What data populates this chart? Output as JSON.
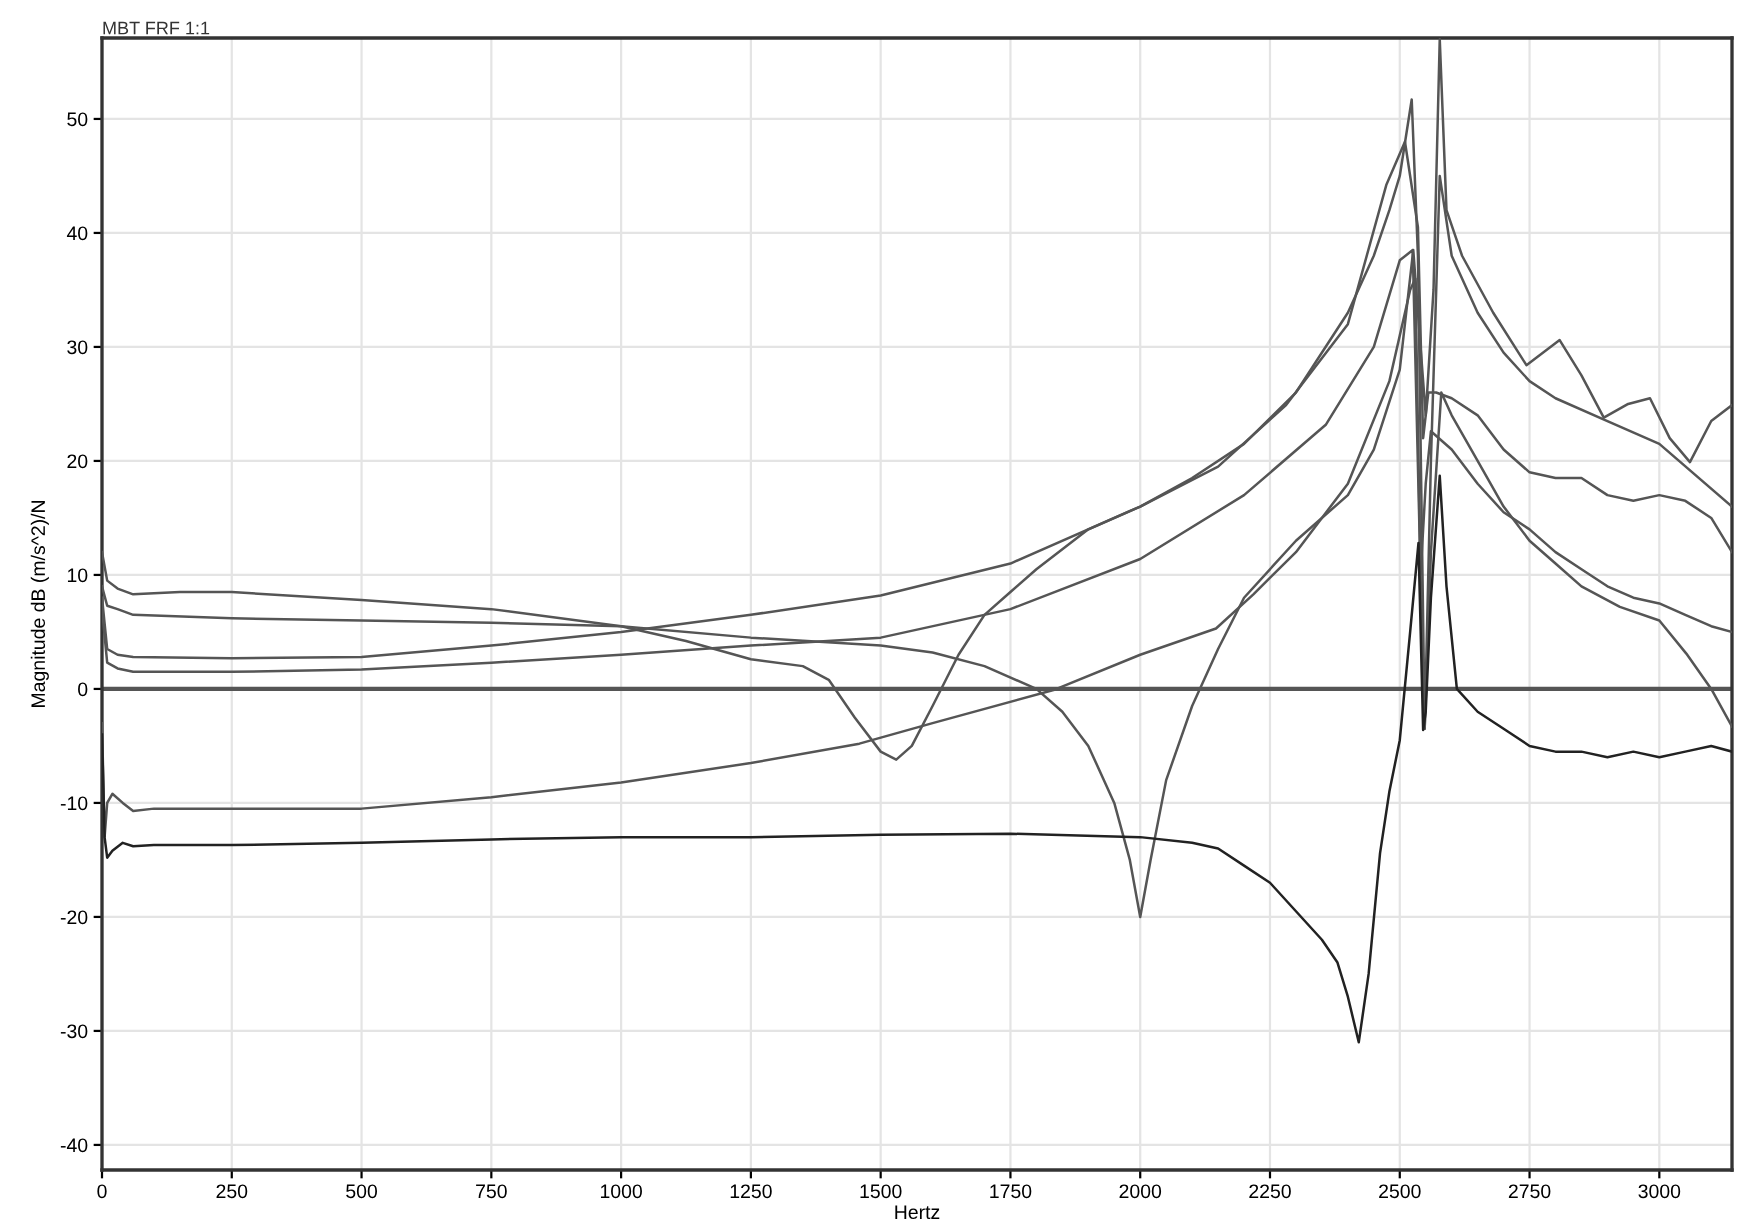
{
  "chart_data": {
    "type": "line",
    "title": "MBT FRF 1:1",
    "xlabel": "Hertz",
    "ylabel": "Magnitude dB (m/s^2)/N",
    "xlim": [
      0,
      3140
    ],
    "ylim": [
      -42.2,
      57.1
    ],
    "xticks": [
      0,
      250,
      500,
      750,
      1000,
      1250,
      1500,
      1750,
      2000,
      2250,
      2500,
      2750,
      3000
    ],
    "yticks": [
      -40,
      -30,
      -20,
      -10,
      0,
      10,
      20,
      30,
      40,
      50
    ],
    "grid": true,
    "legend": false,
    "marker": "none",
    "line_style": "solid",
    "ref_lines": [
      {
        "axis": "y",
        "value": 0,
        "color": "#555555"
      }
    ],
    "series": [
      {
        "color": "#555555",
        "x": [
          0,
          10,
          30,
          60,
          150,
          250,
          500,
          750,
          1000,
          1125,
          1250,
          1350,
          1400,
          1450,
          1500,
          1530,
          1560,
          1600,
          1650,
          1700,
          1750,
          1800,
          1900,
          2000,
          2100,
          2200,
          2300,
          2400,
          2450,
          2480,
          2500,
          2523,
          2535,
          2548,
          2560,
          2577,
          2600,
          2650,
          2700,
          2750,
          2800,
          2900,
          3000,
          3140
        ],
        "values": [
          12,
          9.5,
          8.8,
          8.3,
          8.5,
          8.5,
          7.8,
          7.0,
          5.5,
          4.2,
          2.6,
          2.0,
          0.8,
          -2.5,
          -5.5,
          -6.2,
          -5,
          -1.5,
          3,
          6.5,
          8.5,
          10.5,
          14,
          16,
          18.5,
          21.5,
          26,
          33,
          38,
          42,
          45,
          51.7,
          38,
          -3.5,
          20,
          45,
          38,
          33,
          29.5,
          27,
          25.5,
          23.5,
          21.5,
          16
        ]
      },
      {
        "color": "#555555",
        "x": [
          0,
          10,
          30,
          60,
          250,
          500,
          750,
          1000,
          1250,
          1500,
          1600,
          1700,
          1800,
          1850,
          1900,
          1950,
          1980,
          2000,
          2020,
          2050,
          2100,
          2150,
          2200,
          2300,
          2400,
          2450,
          2500,
          2526,
          2540,
          2550,
          2565,
          2577,
          2590,
          2620,
          2680,
          2744,
          2808,
          2850,
          2893,
          2940,
          2982,
          3020,
          3059,
          3100,
          3140
        ],
        "values": [
          9,
          7.3,
          7,
          6.5,
          6.2,
          6,
          5.8,
          5.5,
          4.5,
          3.8,
          3.2,
          2,
          0,
          -2,
          -5,
          -10,
          -15,
          -20,
          -15,
          -8,
          -1.5,
          3.5,
          8,
          13,
          17,
          21,
          28,
          38.5,
          30,
          24,
          35,
          57,
          42,
          38,
          33,
          28.4,
          30.6,
          27.5,
          23.8,
          25,
          25.5,
          22,
          19.9,
          23.5,
          24.9
        ]
      },
      {
        "color": "#555555",
        "x": [
          0,
          10,
          30,
          60,
          250,
          500,
          750,
          1000,
          1250,
          1500,
          1750,
          2000,
          2150,
          2281,
          2400,
          2474,
          2510,
          2535,
          2545,
          2555,
          2570,
          2600,
          2650,
          2700,
          2750,
          2800,
          2850,
          2900,
          2950,
          3000,
          3050,
          3100,
          3140
        ],
        "values": [
          8,
          3.5,
          3,
          2.8,
          2.7,
          2.8,
          3.8,
          5,
          6.5,
          8.2,
          11,
          16,
          19.5,
          24.9,
          32,
          44.2,
          48,
          40.5,
          22,
          26,
          26,
          25.5,
          24,
          21,
          19,
          18.5,
          18.5,
          17,
          16.5,
          17,
          16.5,
          15,
          12
        ]
      },
      {
        "color": "#555555",
        "x": [
          0,
          10,
          30,
          60,
          250,
          500,
          750,
          1000,
          1250,
          1500,
          1750,
          2000,
          2200,
          2358,
          2450,
          2500,
          2525,
          2540,
          2550,
          2560,
          2600,
          2650,
          2700,
          2750,
          2800,
          2850,
          2900,
          2950,
          3000,
          3050,
          3100,
          3140
        ],
        "values": [
          7,
          2.3,
          1.8,
          1.5,
          1.5,
          1.7,
          2.3,
          3,
          3.8,
          4.5,
          7,
          11.4,
          17,
          23.2,
          30,
          37.6,
          38.5,
          10,
          18,
          22.6,
          21,
          18,
          15.5,
          14,
          12,
          10.5,
          9,
          8,
          7.5,
          6.5,
          5.5,
          5
        ]
      },
      {
        "color": "#555555",
        "x": [
          0,
          5,
          10,
          20,
          40,
          60,
          100,
          250,
          500,
          750,
          1000,
          1250,
          1459,
          1600,
          1833,
          2000,
          2146,
          2218,
          2300,
          2400,
          2480,
          2520,
          2530,
          2540,
          2548,
          2560,
          2580,
          2600,
          2650,
          2700,
          2750,
          2800,
          2850,
          2924,
          3000,
          3052,
          3100,
          3140
        ],
        "values": [
          -3,
          -13,
          -10,
          -9.2,
          -10,
          -10.7,
          -10.5,
          -10.5,
          -10.5,
          -9.5,
          -8.2,
          -6.5,
          -4.8,
          -3,
          -0.1,
          3,
          5.3,
          8.3,
          12,
          18,
          27,
          35,
          36,
          10,
          -3.5,
          12,
          26,
          24,
          20,
          16,
          13,
          11,
          9,
          7.2,
          6,
          3.1,
          0,
          -3.3
        ]
      },
      {
        "color": "#222222",
        "x": [
          0,
          5,
          10,
          20,
          40,
          60,
          100,
          250,
          500,
          750,
          1000,
          1250,
          1500,
          1750,
          2000,
          2100,
          2150,
          2200,
          2250,
          2300,
          2350,
          2380,
          2400,
          2421,
          2440,
          2462,
          2480,
          2500,
          2520,
          2536,
          2545,
          2550,
          2560,
          2577,
          2590,
          2610,
          2650,
          2700,
          2750,
          2800,
          2850,
          2900,
          2950,
          3000,
          3050,
          3100,
          3140
        ],
        "values": [
          -4,
          -13,
          -14.8,
          -14.2,
          -13.5,
          -13.8,
          -13.7,
          -13.7,
          -13.5,
          -13.2,
          -13,
          -13,
          -12.8,
          -12.7,
          -13,
          -13.5,
          -14,
          -15.5,
          -17,
          -19.5,
          -22,
          -24,
          -27,
          -31,
          -25,
          -14.4,
          -9,
          -4.5,
          5,
          12.8,
          -3.6,
          -2,
          8,
          18.7,
          9,
          0,
          -2,
          -3.5,
          -5,
          -5.5,
          -5.5,
          -6,
          -5.5,
          -6,
          -5.5,
          -5,
          -5.5
        ]
      }
    ]
  }
}
